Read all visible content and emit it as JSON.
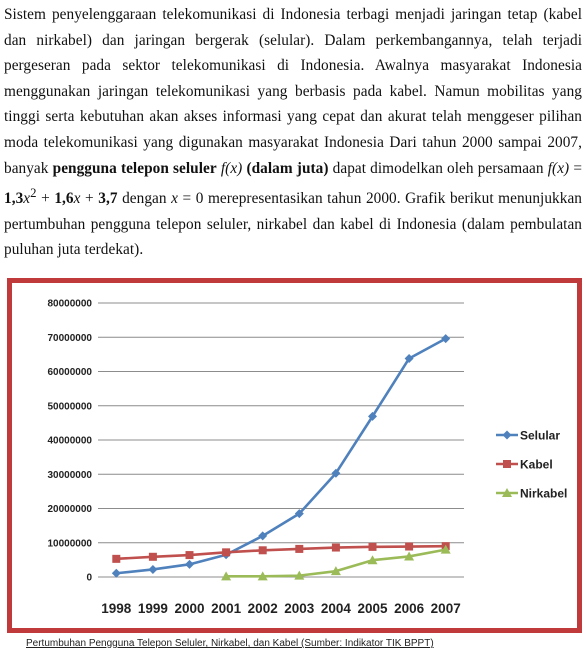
{
  "paragraph": {
    "s1": "Sistem penyelenggaraan telekomunikasi di Indonesia terbagi menjadi jaringan tetap (kabel dan nirkabel) dan jaringan bergerak (selular). Dalam perkembangannya, telah terjadi pergeseran pada sektor telekomunikasi di Indonesia. Awalnya masyarakat Indonesia menggunakan jaringan telekomunikasi yang berbasis pada kabel. Namun mobilitas yang tinggi serta kebutuhan akan akses informasi yang cepat dan akurat telah menggeser pilihan moda telekomunikasi yang digunakan masyarakat Indonesia Dari tahun 2000 sampai 2007, banyak",
    "bold1": "pengguna telepon seluler",
    "fx1": "f(x)",
    "bold2": "(dalam juta)",
    "s2": "dapat dimodelkan oleh persamaan",
    "fx2": "f(x)",
    "eq_eq": " = ",
    "eq_c1": "1,3",
    "eq_x1": "x",
    "eq_sup": "2",
    "eq_plus1": " + ",
    "eq_c2": "1,6",
    "eq_x2": "x",
    "eq_plus2": " + ",
    "eq_c3": "3,7",
    "s3": "dengan",
    "var_x": "x",
    "s4": "= 0 merepresentasikan tahun 2000. Grafik berikut menunjukkan pertumbuhan pengguna telepon seluler, nirkabel dan kabel di Indonesia (dalam pembulatan puluhan juta terdekat)."
  },
  "caption": "Pertumbuhan Pengguna Telepon Seluler, Nirkabel, dan Kabel (Sumber: Indikator TIK BPPT)",
  "chart_data": {
    "type": "line",
    "title": "",
    "xlabel": "",
    "ylabel": "",
    "x": [
      "1998",
      "1999",
      "2000",
      "2001",
      "2002",
      "2003",
      "2004",
      "2005",
      "2006",
      "2007"
    ],
    "ylim": [
      0,
      80000000
    ],
    "yticks": [
      0,
      10000000,
      20000000,
      30000000,
      40000000,
      50000000,
      60000000,
      70000000,
      80000000
    ],
    "ytick_labels": [
      "0",
      "10000000",
      "20000000",
      "30000000",
      "40000000",
      "50000000",
      "60000000",
      "70000000",
      "80000000"
    ],
    "grid": "horizontal",
    "legend_position": "right",
    "series": [
      {
        "name": "Selular",
        "color": "#4f81bd",
        "marker": "diamond",
        "values": [
          1100000,
          2200000,
          3700000,
          6500000,
          12000000,
          18500000,
          30300000,
          46900000,
          63800000,
          69600000
        ]
      },
      {
        "name": "Kabel",
        "color": "#c0504d",
        "marker": "square",
        "values": [
          5300000,
          5900000,
          6400000,
          7200000,
          7800000,
          8200000,
          8600000,
          8800000,
          8900000,
          9000000
        ]
      },
      {
        "name": "Nirkabel",
        "color": "#9bbb59",
        "marker": "triangle",
        "values": [
          null,
          null,
          null,
          200000,
          200000,
          400000,
          1700000,
          4900000,
          6000000,
          8000000
        ]
      }
    ]
  }
}
